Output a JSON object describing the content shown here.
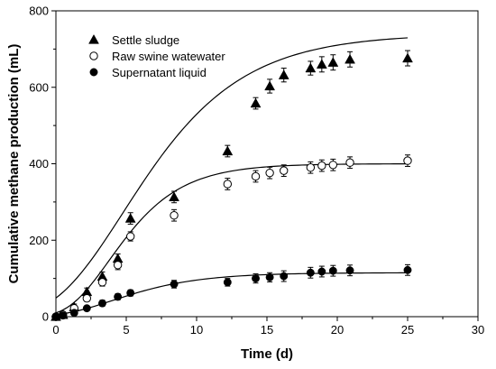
{
  "chart_data": {
    "type": "scatter",
    "xlabel": "Time (d)",
    "ylabel": "Cumulative methane production (mL)",
    "xlim": [
      0,
      30
    ],
    "ylim": [
      0,
      800
    ],
    "xticks": [
      0,
      5,
      10,
      15,
      20,
      25,
      30
    ],
    "yticks": [
      0,
      200,
      400,
      600,
      800
    ],
    "grid": false,
    "legend_position": "top-left",
    "series": [
      {
        "name": "Settle sludge",
        "marker": "filled-triangle",
        "color": "#000000",
        "x": [
          0,
          0.5,
          1.3,
          2.2,
          3.3,
          4.4,
          5.3,
          8.4,
          12.2,
          14.2,
          15.2,
          16.2,
          18.1,
          18.9,
          19.7,
          20.9,
          25.0
        ],
        "y": [
          0,
          5,
          25,
          65,
          105,
          152,
          257,
          313,
          433,
          558,
          603,
          632,
          650,
          660,
          665,
          673,
          676
        ],
        "error": [
          5,
          5,
          8,
          10,
          12,
          12,
          15,
          15,
          15,
          15,
          18,
          18,
          18,
          20,
          20,
          20,
          20
        ]
      },
      {
        "name": "Raw swine watewater",
        "marker": "open-circle",
        "color": "#000000",
        "x": [
          0,
          0.5,
          1.3,
          2.2,
          3.3,
          4.4,
          5.3,
          8.4,
          12.2,
          14.2,
          15.2,
          16.2,
          18.1,
          18.9,
          19.7,
          20.9,
          25.0
        ],
        "y": [
          0,
          5,
          22,
          48,
          90,
          135,
          210,
          265,
          347,
          367,
          376,
          382,
          390,
          395,
          397,
          403,
          408
        ],
        "error": [
          4,
          4,
          6,
          8,
          10,
          12,
          12,
          15,
          15,
          15,
          15,
          15,
          15,
          15,
          15,
          15,
          15
        ]
      },
      {
        "name": "Supernatant liquid",
        "marker": "filled-circle",
        "color": "#000000",
        "x": [
          0,
          0.5,
          1.3,
          2.2,
          3.3,
          4.4,
          5.3,
          8.4,
          12.2,
          14.2,
          15.2,
          16.2,
          18.1,
          18.9,
          19.7,
          20.9,
          25.0
        ],
        "y": [
          0,
          3,
          10,
          22,
          35,
          52,
          62,
          85,
          90,
          100,
          103,
          106,
          115,
          118,
          120,
          121,
          122
        ],
        "error": [
          3,
          3,
          5,
          6,
          8,
          8,
          8,
          10,
          10,
          12,
          12,
          14,
          14,
          14,
          14,
          14,
          14
        ]
      }
    ],
    "fits": [
      {
        "series": "Settle sludge",
        "model": "modified-gompertz",
        "P": 740,
        "Rm": 57,
        "lambda": 0.0
      },
      {
        "series": "Raw swine watewater",
        "model": "modified-gompertz",
        "P": 400,
        "Rm": 51,
        "lambda": 0.9
      },
      {
        "series": "Supernatant liquid",
        "model": "modified-gompertz",
        "P": 115,
        "Rm": 12,
        "lambda": 0.5
      }
    ]
  }
}
